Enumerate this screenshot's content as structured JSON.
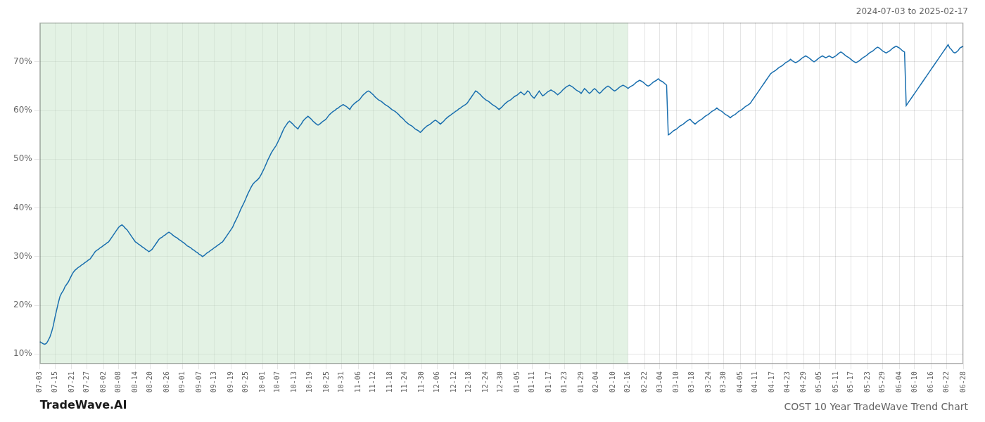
{
  "chart_data": {
    "type": "line",
    "title": "COST 10 Year TradeWave Trend Chart",
    "subtitle": "2024-07-03 to 2025-02-17",
    "annotations": [
      {
        "text": "TradeWave.AI"
      }
    ],
    "color": "#1a6faf",
    "grid": true,
    "ylim": [
      8,
      78
    ],
    "yticks": [
      {
        "value": 10,
        "label": "10%"
      },
      {
        "value": 20,
        "label": "20%"
      },
      {
        "value": 30,
        "label": "30%"
      },
      {
        "value": 40,
        "label": "40%"
      },
      {
        "value": 50,
        "label": "50%"
      },
      {
        "value": 60,
        "label": "60%"
      },
      {
        "value": 70,
        "label": "70%"
      }
    ],
    "shaded_range": {
      "from": "07-03",
      "to": "02-16",
      "color": "#c8e6c9"
    },
    "categories": [
      "07-03",
      null,
      null,
      null,
      null,
      null,
      null,
      null,
      null,
      "07-15",
      null,
      null,
      null,
      null,
      null,
      null,
      null,
      null,
      null,
      "07-21",
      null,
      null,
      null,
      null,
      null,
      null,
      null,
      null,
      "07-27",
      null,
      null,
      null,
      null,
      null,
      null,
      null,
      null,
      null,
      "08-02",
      null,
      null,
      null,
      null,
      null,
      null,
      null,
      null,
      "08-08",
      null,
      null,
      null,
      null,
      null,
      null,
      null,
      null,
      null,
      "08-14",
      null,
      null,
      null,
      null,
      null,
      null,
      null,
      null,
      "08-20",
      null,
      null,
      null,
      null,
      null,
      null,
      null,
      null,
      null,
      "08-26",
      null,
      null,
      null,
      null,
      null,
      null,
      null,
      null,
      "09-01",
      null,
      null,
      null,
      null,
      null,
      null,
      null,
      null,
      null,
      "09-07",
      null,
      null,
      null,
      null,
      null,
      null,
      null,
      null,
      "09-13",
      null,
      null,
      null,
      null,
      null,
      null,
      null,
      null,
      null,
      "09-19",
      null,
      null,
      null,
      null,
      null,
      null,
      null,
      null,
      "09-25",
      null,
      null,
      null,
      null,
      null,
      null,
      null,
      null,
      null,
      "10-01",
      null,
      null,
      null,
      null,
      null,
      null,
      null,
      null,
      "10-07",
      null,
      null,
      null,
      null,
      null,
      null,
      null,
      null,
      null,
      "10-13",
      null,
      null,
      null,
      null,
      null,
      null,
      null,
      null,
      "10-19",
      null,
      null,
      null,
      null,
      null,
      null,
      null,
      null,
      null,
      "10-25",
      null,
      null,
      null,
      null,
      null,
      null,
      null,
      null,
      "10-31",
      null,
      null,
      null,
      null,
      null,
      null,
      null,
      null,
      null,
      "11-06",
      null,
      null,
      null,
      null,
      null,
      null,
      null,
      null,
      "11-12",
      null,
      null,
      null,
      null,
      null,
      null,
      null,
      null,
      null,
      "11-18",
      null,
      null,
      null,
      null,
      null,
      null,
      null,
      null,
      "11-24",
      null,
      null,
      null,
      null,
      null,
      null,
      null,
      null,
      null,
      "11-30",
      null,
      null,
      null,
      null,
      null,
      null,
      null,
      null,
      "12-06",
      null,
      null,
      null,
      null,
      null,
      null,
      null,
      null,
      null,
      "12-12",
      null,
      null,
      null,
      null,
      null,
      null,
      null,
      null,
      "12-18",
      null,
      null,
      null,
      null,
      null,
      null,
      null,
      null,
      null,
      "12-24",
      null,
      null,
      null,
      null,
      null,
      null,
      null,
      null,
      "12-30",
      null,
      null,
      null,
      null,
      null,
      null,
      null,
      null,
      null,
      "01-05",
      null,
      null,
      null,
      null,
      null,
      null,
      null,
      null,
      "01-11",
      null,
      null,
      null,
      null,
      null,
      null,
      null,
      null,
      null,
      "01-17",
      null,
      null,
      null,
      null,
      null,
      null,
      null,
      null,
      "01-23",
      null,
      null,
      null,
      null,
      null,
      null,
      null,
      null,
      null,
      "01-29",
      null,
      null,
      null,
      null,
      null,
      null,
      null,
      null,
      "02-04",
      null,
      null,
      null,
      null,
      null,
      null,
      null,
      null,
      null,
      "02-10",
      null,
      null,
      null,
      null,
      null,
      null,
      null,
      null,
      "02-16",
      null,
      null,
      null,
      null,
      null,
      null,
      null,
      null,
      null,
      "02-22",
      null,
      null,
      null,
      null,
      null,
      null,
      null,
      null,
      "03-04",
      null,
      null,
      null,
      null,
      null,
      null,
      null,
      null,
      null,
      "03-10",
      null,
      null,
      null,
      null,
      null,
      null,
      null,
      null,
      "03-18",
      null,
      null,
      null,
      null,
      null,
      null,
      null,
      null,
      null,
      "03-24",
      null,
      null,
      null,
      null,
      null,
      null,
      null,
      null,
      "03-30",
      null,
      null,
      null,
      null,
      null,
      null,
      null,
      null,
      null,
      "04-05",
      null,
      null,
      null,
      null,
      null,
      null,
      null,
      null,
      "04-11",
      null,
      null,
      null,
      null,
      null,
      null,
      null,
      null,
      null,
      "04-17",
      null,
      null,
      null,
      null,
      null,
      null,
      null,
      null,
      "04-23",
      null,
      null,
      null,
      null,
      null,
      null,
      null,
      null,
      null,
      "04-29",
      null,
      null,
      null,
      null,
      null,
      null,
      null,
      null,
      "05-05",
      null,
      null,
      null,
      null,
      null,
      null,
      null,
      null,
      null,
      "05-11",
      null,
      null,
      null,
      null,
      null,
      null,
      null,
      null,
      "05-17",
      null,
      null,
      null,
      null,
      null,
      null,
      null,
      null,
      null,
      "05-23",
      null,
      null,
      null,
      null,
      null,
      null,
      null,
      null,
      "05-29",
      null,
      null,
      null,
      null,
      null,
      null,
      null,
      null,
      null,
      "06-04",
      null,
      null,
      null,
      null,
      null,
      null,
      null,
      null,
      "06-10",
      null,
      null,
      null,
      null,
      null,
      null,
      null,
      null,
      null,
      "06-16",
      null,
      null,
      null,
      null,
      null,
      null,
      null,
      null,
      "06-22",
      null,
      null,
      null,
      null,
      null,
      null,
      null,
      null,
      null,
      "06-28"
    ],
    "values": [
      12.5,
      12.3,
      12.1,
      12.0,
      12.2,
      12.8,
      13.5,
      14.5,
      15.8,
      17.5,
      19.0,
      20.5,
      21.8,
      22.5,
      23.0,
      23.8,
      24.3,
      24.8,
      25.5,
      26.2,
      26.8,
      27.2,
      27.5,
      27.8,
      28.0,
      28.3,
      28.5,
      28.8,
      29.0,
      29.3,
      29.5,
      30.0,
      30.5,
      31.0,
      31.3,
      31.5,
      31.8,
      32.0,
      32.3,
      32.5,
      32.8,
      33.0,
      33.5,
      34.0,
      34.5,
      35.0,
      35.5,
      36.0,
      36.3,
      36.5,
      36.2,
      35.8,
      35.5,
      35.0,
      34.5,
      34.0,
      33.5,
      33.0,
      32.8,
      32.5,
      32.3,
      32.0,
      31.8,
      31.5,
      31.3,
      31.0,
      31.2,
      31.5,
      32.0,
      32.5,
      33.0,
      33.5,
      33.8,
      34.0,
      34.3,
      34.5,
      34.8,
      35.0,
      34.8,
      34.5,
      34.2,
      34.0,
      33.8,
      33.5,
      33.3,
      33.0,
      32.8,
      32.5,
      32.2,
      32.0,
      31.8,
      31.5,
      31.3,
      31.0,
      30.8,
      30.5,
      30.3,
      30.0,
      30.2,
      30.5,
      30.8,
      31.0,
      31.3,
      31.5,
      31.8,
      32.0,
      32.3,
      32.5,
      32.8,
      33.0,
      33.5,
      34.0,
      34.5,
      35.0,
      35.5,
      36.0,
      36.8,
      37.5,
      38.2,
      39.0,
      39.8,
      40.5,
      41.2,
      42.0,
      42.8,
      43.5,
      44.2,
      44.8,
      45.2,
      45.5,
      45.8,
      46.2,
      46.8,
      47.5,
      48.2,
      49.0,
      49.8,
      50.5,
      51.2,
      51.8,
      52.3,
      52.8,
      53.5,
      54.2,
      55.0,
      55.8,
      56.5,
      57.0,
      57.5,
      57.8,
      57.5,
      57.2,
      56.8,
      56.5,
      56.2,
      56.8,
      57.2,
      57.8,
      58.2,
      58.5,
      58.8,
      58.5,
      58.2,
      57.8,
      57.5,
      57.2,
      57.0,
      57.2,
      57.5,
      57.8,
      58.0,
      58.3,
      58.8,
      59.2,
      59.5,
      59.8,
      60.0,
      60.3,
      60.5,
      60.8,
      61.0,
      61.2,
      61.0,
      60.8,
      60.5,
      60.2,
      60.8,
      61.2,
      61.5,
      61.8,
      62.0,
      62.3,
      62.8,
      63.2,
      63.5,
      63.8,
      64.0,
      63.8,
      63.5,
      63.2,
      62.8,
      62.5,
      62.2,
      62.0,
      61.8,
      61.5,
      61.2,
      61.0,
      60.8,
      60.5,
      60.2,
      60.0,
      59.8,
      59.5,
      59.2,
      58.8,
      58.5,
      58.2,
      57.8,
      57.5,
      57.2,
      57.0,
      56.8,
      56.5,
      56.2,
      56.0,
      55.8,
      55.5,
      55.8,
      56.2,
      56.5,
      56.8,
      57.0,
      57.2,
      57.5,
      57.8,
      58.0,
      57.8,
      57.5,
      57.2,
      57.5,
      57.8,
      58.2,
      58.5,
      58.8,
      59.0,
      59.3,
      59.5,
      59.8,
      60.0,
      60.3,
      60.5,
      60.8,
      61.0,
      61.2,
      61.5,
      62.0,
      62.5,
      63.0,
      63.5,
      64.0,
      63.8,
      63.5,
      63.2,
      62.8,
      62.5,
      62.2,
      62.0,
      61.8,
      61.5,
      61.2,
      61.0,
      60.8,
      60.5,
      60.2,
      60.5,
      60.8,
      61.2,
      61.5,
      61.8,
      62.0,
      62.2,
      62.5,
      62.8,
      63.0,
      63.2,
      63.5,
      63.8,
      63.5,
      63.2,
      63.5,
      64.0,
      63.8,
      63.2,
      62.8,
      62.5,
      63.0,
      63.5,
      64.0,
      63.5,
      63.0,
      63.2,
      63.5,
      63.8,
      64.0,
      64.2,
      64.0,
      63.8,
      63.5,
      63.2,
      63.5,
      63.8,
      64.2,
      64.5,
      64.8,
      65.0,
      65.2,
      65.0,
      64.8,
      64.5,
      64.2,
      64.0,
      63.8,
      63.5,
      64.0,
      64.5,
      64.2,
      63.8,
      63.5,
      63.8,
      64.2,
      64.5,
      64.2,
      63.8,
      63.5,
      63.8,
      64.2,
      64.5,
      64.8,
      65.0,
      64.8,
      64.5,
      64.2,
      64.0,
      64.2,
      64.5,
      64.8,
      65.0,
      65.2,
      65.0,
      64.8,
      64.5,
      64.8,
      65.0,
      65.2,
      65.5,
      65.8,
      66.0,
      66.2,
      66.0,
      65.8,
      65.5,
      65.2,
      65.0,
      65.2,
      65.5,
      65.8,
      66.0,
      66.2,
      66.5,
      66.2,
      66.0,
      65.8,
      65.5,
      65.2,
      55.0,
      55.2,
      55.5,
      55.8,
      56.0,
      56.2,
      56.5,
      56.8,
      57.0,
      57.2,
      57.5,
      57.8,
      58.0,
      58.2,
      57.8,
      57.5,
      57.2,
      57.5,
      57.8,
      58.0,
      58.2,
      58.5,
      58.8,
      59.0,
      59.2,
      59.5,
      59.8,
      60.0,
      60.2,
      60.5,
      60.2,
      60.0,
      59.8,
      59.5,
      59.2,
      59.0,
      58.8,
      58.5,
      58.8,
      59.0,
      59.2,
      59.5,
      59.8,
      60.0,
      60.2,
      60.5,
      60.8,
      61.0,
      61.2,
      61.5,
      62.0,
      62.5,
      63.0,
      63.5,
      64.0,
      64.5,
      65.0,
      65.5,
      66.0,
      66.5,
      67.0,
      67.5,
      67.8,
      68.0,
      68.2,
      68.5,
      68.8,
      69.0,
      69.2,
      69.5,
      69.8,
      70.0,
      70.2,
      70.5,
      70.2,
      70.0,
      69.8,
      70.0,
      70.2,
      70.5,
      70.8,
      71.0,
      71.2,
      71.0,
      70.8,
      70.5,
      70.2,
      70.0,
      70.2,
      70.5,
      70.8,
      71.0,
      71.2,
      71.0,
      70.8,
      71.0,
      71.2,
      71.0,
      70.8,
      71.0,
      71.2,
      71.5,
      71.8,
      72.0,
      71.8,
      71.5,
      71.2,
      71.0,
      70.8,
      70.5,
      70.2,
      70.0,
      69.8,
      70.0,
      70.2,
      70.5,
      70.8,
      71.0,
      71.2,
      71.5,
      71.8,
      72.0,
      72.2,
      72.5,
      72.8,
      73.0,
      72.8,
      72.5,
      72.2,
      72.0,
      71.8,
      72.0,
      72.2,
      72.5,
      72.8,
      73.0,
      73.2,
      73.0,
      72.8,
      72.5,
      72.2,
      72.0,
      61.0,
      61.5,
      62.0,
      62.5,
      63.0,
      63.5,
      64.0,
      64.5,
      65.0,
      65.5,
      66.0,
      66.5,
      67.0,
      67.5,
      68.0,
      68.5,
      69.0,
      69.5,
      70.0,
      70.5,
      71.0,
      71.5,
      72.0,
      72.5,
      73.0,
      73.5,
      72.8,
      72.5,
      72.0,
      71.8,
      72.0,
      72.3,
      72.8,
      73.0,
      73.2
    ]
  }
}
